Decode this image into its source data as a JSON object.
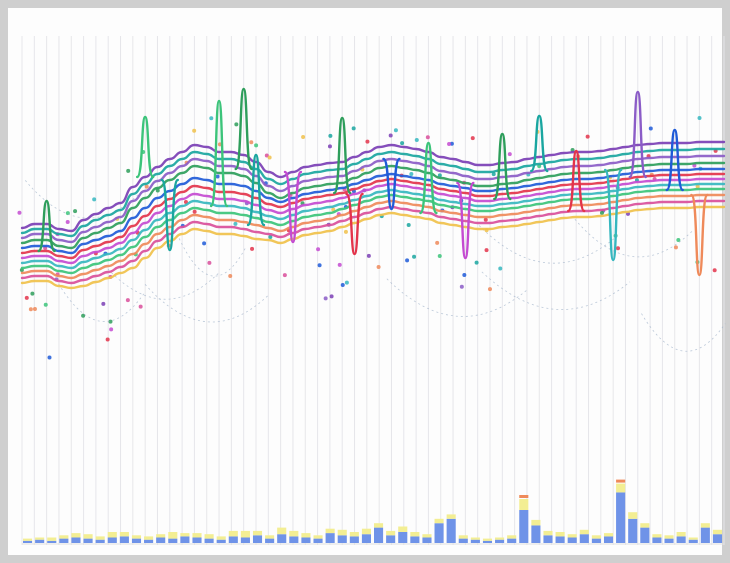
{
  "visualization": {
    "type": "storyline-timeline",
    "colors": {
      "background": "#fdfdfd",
      "frame": "#cfcfcf",
      "gridline": "#e6e6ea",
      "bar_primary": "#6f93e8",
      "bar_secondary": "#f3ee93",
      "bar_accent": "#ef8a5a",
      "palette": [
        "#2e9e5b",
        "#1f5bd8",
        "#e3344b",
        "#c44bd1",
        "#36b7bf",
        "#f0c14b",
        "#8b5cc7",
        "#3cc47a",
        "#ef8a5a",
        "#1aa6a0",
        "#7b3fb5",
        "#d94f9b"
      ]
    },
    "gridline_count": 58,
    "storylines": [
      {
        "color": "#2e9e5b",
        "y": [
          235,
          232,
          232,
          238,
          240,
          230,
          225,
          220,
          215,
          200,
          190,
          180,
          172,
          165,
          158,
          160,
          165,
          165,
          168,
          175,
          185,
          190,
          185,
          180,
          178,
          176,
          175,
          170,
          165,
          160,
          158,
          160,
          162,
          165,
          170,
          172,
          175,
          178,
          178,
          176,
          175,
          172,
          170,
          168,
          166,
          165,
          165,
          164,
          162,
          160,
          158,
          157,
          156,
          156,
          156,
          155,
          155,
          155
        ]
      },
      {
        "color": "#1f5bd8",
        "y": [
          240,
          238,
          238,
          243,
          245,
          236,
          232,
          228,
          223,
          210,
          200,
          190,
          183,
          176,
          170,
          172,
          176,
          176,
          178,
          183,
          190,
          194,
          190,
          186,
          184,
          182,
          180,
          176,
          172,
          168,
          166,
          168,
          170,
          172,
          176,
          178,
          180,
          183,
          183,
          181,
          180,
          178,
          176,
          174,
          172,
          171,
          171,
          170,
          168,
          166,
          164,
          163,
          162,
          162,
          162,
          161,
          161,
          161
        ]
      },
      {
        "color": "#e3344b",
        "y": [
          245,
          243,
          243,
          248,
          250,
          242,
          238,
          234,
          229,
          218,
          208,
          198,
          191,
          184,
          178,
          180,
          184,
          184,
          186,
          190,
          196,
          199,
          195,
          191,
          189,
          187,
          185,
          181,
          177,
          173,
          171,
          173,
          175,
          177,
          181,
          183,
          185,
          188,
          188,
          186,
          185,
          183,
          181,
          179,
          177,
          176,
          176,
          175,
          173,
          171,
          169,
          168,
          167,
          167,
          167,
          166,
          166,
          166
        ]
      },
      {
        "color": "#c44bd1",
        "y": [
          250,
          248,
          248,
          253,
          255,
          248,
          244,
          240,
          235,
          225,
          215,
          205,
          198,
          191,
          186,
          188,
          191,
          191,
          193,
          197,
          202,
          205,
          201,
          197,
          195,
          193,
          190,
          186,
          182,
          178,
          176,
          178,
          180,
          182,
          186,
          188,
          190,
          193,
          193,
          191,
          190,
          188,
          186,
          184,
          182,
          181,
          181,
          180,
          178,
          176,
          174,
          173,
          172,
          172,
          172,
          171,
          171,
          171
        ]
      },
      {
        "color": "#36b7bf",
        "y": [
          255,
          253,
          253,
          258,
          260,
          254,
          250,
          246,
          241,
          232,
          222,
          212,
          205,
          198,
          193,
          195,
          198,
          198,
          200,
          204,
          208,
          211,
          207,
          203,
          201,
          199,
          196,
          192,
          188,
          184,
          182,
          184,
          186,
          188,
          192,
          194,
          196,
          198,
          198,
          196,
          195,
          193,
          191,
          189,
          187,
          186,
          186,
          185,
          183,
          181,
          179,
          178,
          177,
          177,
          177,
          176,
          176,
          176
        ]
      },
      {
        "color": "#3cc47a",
        "y": [
          260,
          258,
          258,
          263,
          265,
          260,
          256,
          252,
          247,
          239,
          229,
          219,
          212,
          205,
          200,
          202,
          205,
          205,
          207,
          210,
          214,
          217,
          213,
          209,
          207,
          205,
          201,
          197,
          193,
          189,
          187,
          189,
          191,
          193,
          197,
          199,
          201,
          203,
          203,
          201,
          200,
          198,
          196,
          194,
          192,
          191,
          191,
          190,
          188,
          186,
          184,
          183,
          182,
          182,
          182,
          181,
          181,
          181
        ]
      },
      {
        "color": "#8b5cc7",
        "y": [
          230,
          226,
          226,
          232,
          234,
          224,
          219,
          214,
          209,
          193,
          183,
          173,
          165,
          158,
          151,
          153,
          158,
          158,
          161,
          168,
          178,
          183,
          178,
          173,
          171,
          169,
          168,
          163,
          158,
          153,
          151,
          153,
          155,
          158,
          163,
          165,
          168,
          171,
          171,
          169,
          168,
          165,
          163,
          161,
          159,
          158,
          158,
          157,
          155,
          153,
          151,
          150,
          149,
          149,
          149,
          148,
          148,
          148
        ]
      },
      {
        "color": "#ef8a5a",
        "y": [
          265,
          263,
          263,
          268,
          270,
          266,
          262,
          258,
          253,
          246,
          236,
          226,
          219,
          212,
          207,
          209,
          212,
          212,
          214,
          217,
          220,
          223,
          219,
          215,
          213,
          211,
          207,
          203,
          199,
          195,
          193,
          195,
          197,
          199,
          203,
          205,
          207,
          209,
          209,
          207,
          206,
          204,
          202,
          200,
          198,
          197,
          197,
          196,
          194,
          192,
          190,
          189,
          188,
          188,
          188,
          187,
          187,
          187
        ]
      },
      {
        "color": "#1aa6a0",
        "y": [
          225,
          221,
          221,
          226,
          228,
          218,
          212,
          207,
          202,
          186,
          176,
          166,
          158,
          151,
          144,
          146,
          151,
          151,
          154,
          161,
          171,
          176,
          171,
          166,
          164,
          162,
          161,
          156,
          151,
          146,
          144,
          146,
          148,
          151,
          156,
          158,
          161,
          164,
          164,
          162,
          161,
          158,
          156,
          154,
          152,
          151,
          151,
          150,
          148,
          146,
          144,
          143,
          142,
          142,
          142,
          141,
          141,
          141
        ]
      },
      {
        "color": "#d94f9b",
        "y": [
          270,
          268,
          268,
          273,
          275,
          272,
          268,
          264,
          259,
          253,
          243,
          233,
          226,
          219,
          214,
          216,
          219,
          219,
          221,
          224,
          226,
          229,
          225,
          221,
          219,
          217,
          213,
          209,
          205,
          201,
          199,
          201,
          203,
          205,
          209,
          211,
          213,
          215,
          215,
          213,
          212,
          210,
          208,
          206,
          204,
          203,
          203,
          202,
          200,
          198,
          196,
          195,
          194,
          194,
          194,
          193,
          193,
          193
        ]
      },
      {
        "color": "#7b3fb5",
        "y": [
          220,
          216,
          216,
          221,
          223,
          212,
          206,
          200,
          195,
          179,
          169,
          159,
          151,
          144,
          137,
          139,
          144,
          144,
          147,
          154,
          164,
          169,
          164,
          159,
          157,
          155,
          154,
          149,
          144,
          139,
          137,
          139,
          141,
          144,
          149,
          151,
          154,
          157,
          157,
          155,
          154,
          151,
          149,
          147,
          145,
          144,
          144,
          143,
          141,
          139,
          137,
          136,
          135,
          135,
          135,
          134,
          134,
          134
        ]
      },
      {
        "color": "#f0c14b",
        "y": [
          275,
          273,
          273,
          278,
          280,
          278,
          274,
          270,
          265,
          260,
          250,
          240,
          233,
          226,
          221,
          223,
          226,
          226,
          228,
          231,
          232,
          235,
          231,
          227,
          225,
          223,
          219,
          215,
          211,
          207,
          205,
          207,
          209,
          211,
          215,
          217,
          219,
          221,
          221,
          219,
          218,
          216,
          214,
          212,
          210,
          209,
          209,
          208,
          206,
          204,
          202,
          201,
          200,
          200,
          200,
          199,
          199,
          199
        ]
      }
    ],
    "spikes": [
      {
        "color": "#3cc47a",
        "index": 16,
        "height": -105
      },
      {
        "color": "#2e9e5b",
        "index": 18,
        "height": -80
      },
      {
        "color": "#1aa6a0",
        "index": 19,
        "height": -70
      },
      {
        "color": "#c44bd1",
        "index": 22,
        "height": 70
      },
      {
        "color": "#2e9e5b",
        "index": 26,
        "height": -75
      },
      {
        "color": "#e3344b",
        "index": 27,
        "height": 60
      },
      {
        "color": "#1f5bd8",
        "index": 30,
        "height": 50
      },
      {
        "color": "#3cc47a",
        "index": 33,
        "height": -70
      },
      {
        "color": "#c44bd1",
        "index": 36,
        "height": 75
      },
      {
        "color": "#2e9e5b",
        "index": 39,
        "height": -65
      },
      {
        "color": "#1aa6a0",
        "index": 42,
        "height": -55
      },
      {
        "color": "#e3344b",
        "index": 45,
        "height": -60
      },
      {
        "color": "#36b7bf",
        "index": 48,
        "height": 90
      },
      {
        "color": "#8b5cc7",
        "index": 50,
        "height": -85
      },
      {
        "color": "#1f5bd8",
        "index": 53,
        "height": -60
      },
      {
        "color": "#ef8a5a",
        "index": 55,
        "height": 80
      },
      {
        "color": "#3cc47a",
        "index": 10,
        "height": -60
      },
      {
        "color": "#1aa6a0",
        "index": 12,
        "height": 70
      },
      {
        "color": "#2e9e5b",
        "index": 2,
        "height": -50
      }
    ],
    "histogram": [
      {
        "primary": 2,
        "secondary": 2
      },
      {
        "primary": 3,
        "secondary": 2
      },
      {
        "primary": 2,
        "secondary": 3
      },
      {
        "primary": 4,
        "secondary": 3
      },
      {
        "primary": 5,
        "secondary": 4
      },
      {
        "primary": 4,
        "secondary": 4
      },
      {
        "primary": 3,
        "secondary": 3
      },
      {
        "primary": 5,
        "secondary": 5
      },
      {
        "primary": 6,
        "secondary": 4
      },
      {
        "primary": 4,
        "secondary": 3
      },
      {
        "primary": 3,
        "secondary": 3
      },
      {
        "primary": 5,
        "secondary": 3
      },
      {
        "primary": 4,
        "secondary": 6
      },
      {
        "primary": 6,
        "secondary": 3
      },
      {
        "primary": 5,
        "secondary": 4
      },
      {
        "primary": 4,
        "secondary": 4
      },
      {
        "primary": 3,
        "secondary": 3
      },
      {
        "primary": 6,
        "secondary": 5
      },
      {
        "primary": 5,
        "secondary": 6
      },
      {
        "primary": 7,
        "secondary": 4
      },
      {
        "primary": 4,
        "secondary": 3
      },
      {
        "primary": 8,
        "secondary": 6
      },
      {
        "primary": 6,
        "secondary": 5
      },
      {
        "primary": 5,
        "secondary": 4
      },
      {
        "primary": 4,
        "secondary": 3
      },
      {
        "primary": 9,
        "secondary": 4
      },
      {
        "primary": 7,
        "secondary": 5
      },
      {
        "primary": 6,
        "secondary": 4
      },
      {
        "primary": 8,
        "secondary": 5
      },
      {
        "primary": 14,
        "secondary": 4
      },
      {
        "primary": 7,
        "secondary": 4
      },
      {
        "primary": 10,
        "secondary": 5
      },
      {
        "primary": 6,
        "secondary": 4
      },
      {
        "primary": 5,
        "secondary": 3
      },
      {
        "primary": 18,
        "secondary": 4
      },
      {
        "primary": 22,
        "secondary": 4
      },
      {
        "primary": 4,
        "secondary": 3
      },
      {
        "primary": 3,
        "secondary": 2
      },
      {
        "primary": 2,
        "secondary": 2
      },
      {
        "primary": 3,
        "secondary": 2
      },
      {
        "primary": 4,
        "secondary": 3
      },
      {
        "primary": 30,
        "secondary": 10
      },
      {
        "primary": 16,
        "secondary": 5
      },
      {
        "primary": 7,
        "secondary": 4
      },
      {
        "primary": 6,
        "secondary": 4
      },
      {
        "primary": 5,
        "secondary": 3
      },
      {
        "primary": 8,
        "secondary": 4
      },
      {
        "primary": 4,
        "secondary": 3
      },
      {
        "primary": 6,
        "secondary": 3
      },
      {
        "primary": 46,
        "secondary": 8
      },
      {
        "primary": 22,
        "secondary": 6
      },
      {
        "primary": 14,
        "secondary": 4
      },
      {
        "primary": 5,
        "secondary": 3
      },
      {
        "primary": 4,
        "secondary": 3
      },
      {
        "primary": 6,
        "secondary": 4
      },
      {
        "primary": 3,
        "secondary": 2
      },
      {
        "primary": 14,
        "secondary": 4
      },
      {
        "primary": 8,
        "secondary": 4
      }
    ]
  }
}
